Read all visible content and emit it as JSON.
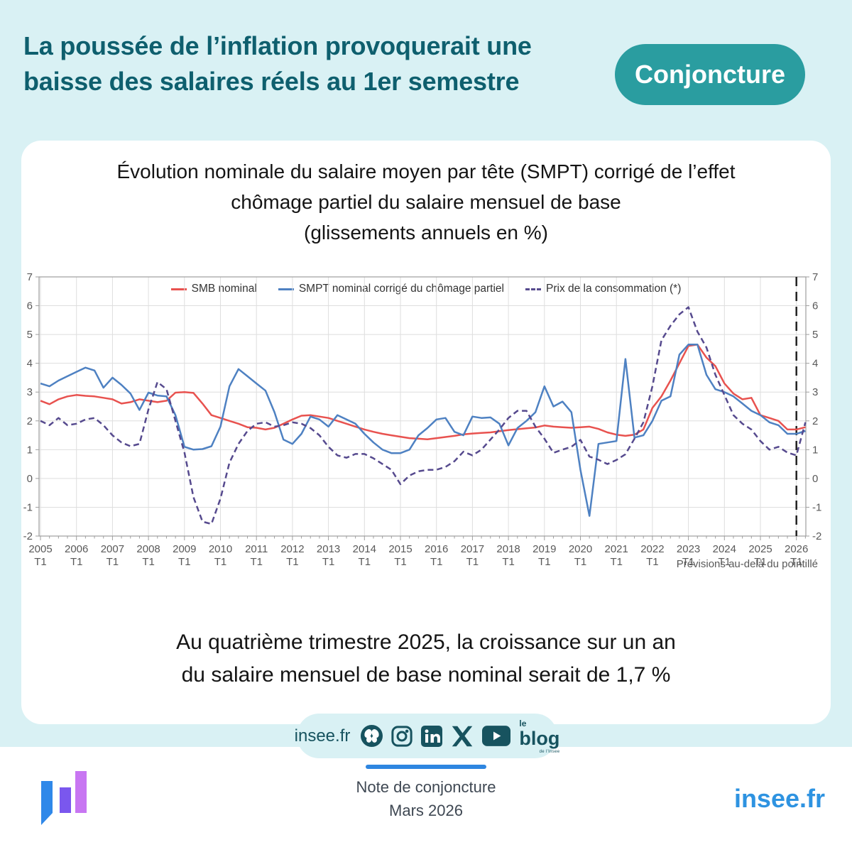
{
  "colors": {
    "page_bg": "#D9F1F4",
    "card_bg": "#FFFFFF",
    "title_teal": "#0E5F6E",
    "badge_bg": "#2A9DA0",
    "badge_text": "#FFFFFF",
    "chart_text": "#141414",
    "axis_text": "#595959",
    "grid": "#DEDEDE",
    "plot_border": "#9E9E9E",
    "smb_red": "#E8524F",
    "smpt_blue": "#4E81C2",
    "prix_purple": "#564A8E",
    "forecast": "#222222",
    "icon_teal": "#17535F",
    "divider_blue": "#2E86E0",
    "footer_text": "#3F4853",
    "site_blue": "#2E93E1",
    "logo_blue": "#2F88E9",
    "logo_violet": "#7A57EE",
    "logo_orchid": "#C876F2"
  },
  "header": {
    "title_line1": "La poussée de l’inflation provoquerait une",
    "title_line2": "baisse des salaires réels au 1er semestre",
    "badge": "Conjoncture"
  },
  "chart_card": {
    "title_lines": [
      "Évolution nominale du salaire moyen par tête (SMPT) corrigé de l’effet",
      "chômage partiel du salaire mensuel de base",
      "(glissements annuels en %)"
    ],
    "forecast_note": "Prévisions au-delà du pointillé",
    "caption_line1": "Au quatrième trimestre 2025, la croissance sur un an",
    "caption_line2": "du salaire mensuel de base nominal serait de 1,7 %"
  },
  "chart_data": {
    "type": "line",
    "title": "Évolution nominale du salaire moyen par tête (SMPT) corrigé de l’effet chômage partiel du salaire mensuel de base (glissements annuels en %)",
    "frequency": "quarterly",
    "x_start": "2005 T1",
    "x_end": "2026 T2",
    "year_labels": [
      "2005",
      "2006",
      "2007",
      "2008",
      "2009",
      "2010",
      "2011",
      "2012",
      "2013",
      "2014",
      "2015",
      "2016",
      "2017",
      "2018",
      "2019",
      "2020",
      "2021",
      "2022",
      "2023",
      "2024",
      "2025",
      "2026"
    ],
    "tick_sub_label": "T1",
    "ylim": [
      -2,
      7
    ],
    "yticks": [
      7,
      6,
      5,
      4,
      3,
      2,
      1,
      0,
      -1,
      -2
    ],
    "grid": true,
    "legend_position": "top-center",
    "forecast_line_index": 84,
    "series": [
      {
        "name": "SMB nominal",
        "color": "#E8524F",
        "style": "solid",
        "values": [
          2.7,
          2.58,
          2.75,
          2.85,
          2.9,
          2.87,
          2.85,
          2.8,
          2.75,
          2.6,
          2.65,
          2.75,
          2.7,
          2.65,
          2.7,
          2.98,
          3.0,
          2.97,
          2.6,
          2.2,
          2.1,
          2.0,
          1.9,
          1.78,
          1.76,
          1.7,
          1.76,
          1.9,
          2.05,
          2.18,
          2.2,
          2.15,
          2.1,
          2.0,
          1.9,
          1.8,
          1.7,
          1.62,
          1.55,
          1.5,
          1.45,
          1.4,
          1.38,
          1.36,
          1.4,
          1.44,
          1.48,
          1.53,
          1.56,
          1.58,
          1.6,
          1.64,
          1.68,
          1.71,
          1.74,
          1.77,
          1.84,
          1.8,
          1.78,
          1.76,
          1.78,
          1.8,
          1.72,
          1.6,
          1.52,
          1.48,
          1.52,
          1.7,
          2.45,
          2.85,
          3.4,
          4.0,
          4.6,
          4.65,
          4.2,
          3.9,
          3.3,
          2.95,
          2.75,
          2.8,
          2.2,
          2.1,
          2.0,
          1.7,
          1.7,
          1.78
        ]
      },
      {
        "name": "SMPT nominal corrigé du chômage partiel",
        "color": "#4E81C2",
        "style": "solid",
        "values": [
          3.3,
          3.2,
          3.4,
          3.55,
          3.7,
          3.85,
          3.75,
          3.15,
          3.5,
          3.25,
          2.95,
          2.38,
          2.98,
          2.88,
          2.85,
          2.2,
          1.1,
          1.0,
          1.02,
          1.12,
          1.8,
          3.2,
          3.8,
          3.55,
          3.3,
          3.05,
          2.3,
          1.35,
          1.2,
          1.55,
          2.15,
          2.05,
          1.8,
          2.2,
          2.05,
          1.9,
          1.55,
          1.25,
          1.0,
          0.88,
          0.88,
          1.0,
          1.5,
          1.75,
          2.05,
          2.1,
          1.62,
          1.5,
          2.15,
          2.1,
          2.12,
          1.9,
          1.15,
          1.75,
          2.0,
          2.3,
          3.2,
          2.5,
          2.67,
          2.3,
          0.3,
          -1.3,
          1.2,
          1.25,
          1.3,
          4.15,
          1.42,
          1.5,
          2.0,
          2.7,
          2.85,
          4.3,
          4.65,
          4.65,
          3.6,
          3.1,
          3.0,
          2.85,
          2.6,
          2.35,
          2.2,
          1.95,
          1.85,
          1.55,
          1.55,
          1.65
        ]
      },
      {
        "name": "Prix de la consommation (*)",
        "color": "#564A8E",
        "style": "dashed",
        "values": [
          2.0,
          1.85,
          2.1,
          1.85,
          1.9,
          2.05,
          2.1,
          1.85,
          1.5,
          1.25,
          1.12,
          1.2,
          2.4,
          3.35,
          3.1,
          2.0,
          0.9,
          -0.65,
          -1.5,
          -1.58,
          -0.7,
          0.55,
          1.2,
          1.65,
          1.9,
          1.95,
          1.8,
          1.85,
          1.95,
          1.9,
          1.75,
          1.5,
          1.1,
          0.8,
          0.72,
          0.85,
          0.85,
          0.7,
          0.5,
          0.3,
          -0.2,
          0.1,
          0.25,
          0.3,
          0.3,
          0.4,
          0.6,
          0.93,
          0.8,
          1.0,
          1.35,
          1.7,
          2.1,
          2.35,
          2.35,
          1.8,
          1.38,
          0.89,
          1.0,
          1.1,
          1.34,
          0.76,
          0.65,
          0.5,
          0.64,
          0.84,
          1.38,
          1.95,
          3.2,
          4.8,
          5.3,
          5.7,
          5.95,
          5.1,
          4.55,
          3.6,
          2.9,
          2.2,
          1.9,
          1.7,
          1.3,
          1.0,
          1.1,
          0.9,
          0.8,
          1.95
        ]
      }
    ]
  },
  "social": {
    "site_label": "insee.fr",
    "icon_names": [
      "bluesky-icon",
      "instagram-icon",
      "linkedin-icon",
      "x-icon",
      "youtube-icon",
      "leblog-logo"
    ],
    "blog": {
      "le": "le",
      "word": "blog",
      "sub": "de l’Insee"
    }
  },
  "footer": {
    "note_line1": "Note de conjoncture",
    "note_line2": "Mars 2026",
    "site": "insee.fr"
  }
}
